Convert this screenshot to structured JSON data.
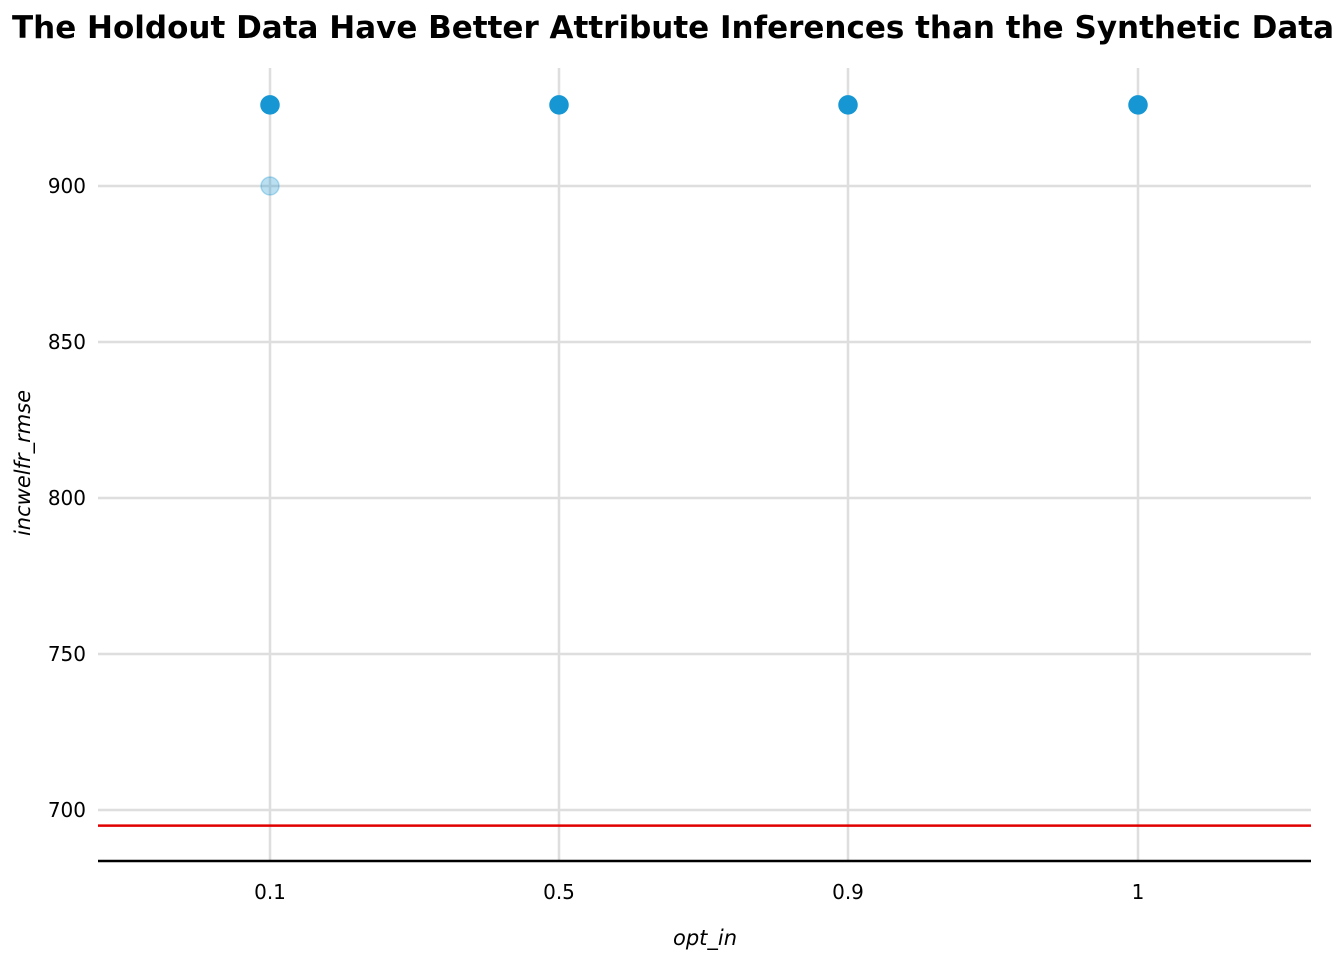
{
  "chart_data": {
    "type": "scatter",
    "title": "The Holdout Data Have Better Attribute Inferences than the Synthetic Data",
    "xlabel": "opt_in",
    "ylabel": "incwelfr_rmse",
    "categories": [
      "0.1",
      "0.5",
      "0.9",
      "1"
    ],
    "y_ticks": [
      700,
      750,
      800,
      850,
      900
    ],
    "ylim": [
      684,
      934
    ],
    "grid": true,
    "point_color": "#1696d2",
    "points": [
      {
        "x": "0.1",
        "y": 926,
        "opacity": 1.0
      },
      {
        "x": "0.1",
        "y": 900,
        "opacity": 0.3
      },
      {
        "x": "0.5",
        "y": 926,
        "opacity": 1.0
      },
      {
        "x": "0.9",
        "y": 926,
        "opacity": 1.0
      },
      {
        "x": "1",
        "y": 926,
        "opacity": 1.0
      }
    ],
    "reference_line": {
      "y": 695,
      "color": "#e00000"
    }
  }
}
